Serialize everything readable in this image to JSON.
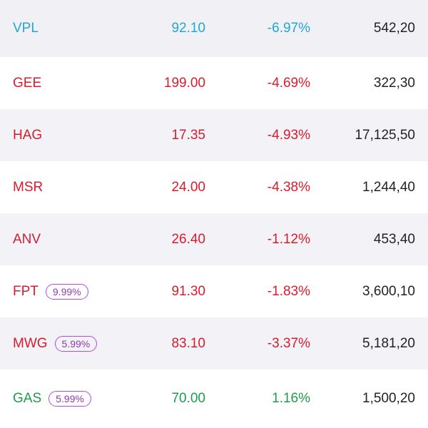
{
  "colors": {
    "ceiling_blue": "#1fa7d6",
    "down_red": "#d81c2f",
    "up_green": "#1e9b4c",
    "badge_purple": "#b04ee0",
    "volume_text": "#222222"
  },
  "rows": [
    {
      "symbol": "VPL",
      "badge": "",
      "price": "92.10",
      "change": "-6.97%",
      "volume": "542,20",
      "color": "blue"
    },
    {
      "symbol": "GEE",
      "badge": "",
      "price": "199.00",
      "change": "-4.69%",
      "volume": "322,30",
      "color": "red"
    },
    {
      "symbol": "HAG",
      "badge": "",
      "price": "17.35",
      "change": "-4.93%",
      "volume": "17,125,50",
      "color": "red"
    },
    {
      "symbol": "MSR",
      "badge": "",
      "price": "24.00",
      "change": "-4.38%",
      "volume": "1,244,40",
      "color": "red"
    },
    {
      "symbol": "ANV",
      "badge": "",
      "price": "26.40",
      "change": "-1.12%",
      "volume": "453,40",
      "color": "red"
    },
    {
      "symbol": "FPT",
      "badge": "9.99%",
      "price": "91.30",
      "change": "-1.83%",
      "volume": "3,600,10",
      "color": "red"
    },
    {
      "symbol": "MWG",
      "badge": "5.99%",
      "price": "83.10",
      "change": "-3.37%",
      "volume": "5,181,20",
      "color": "red"
    },
    {
      "symbol": "GAS",
      "badge": "5.99%",
      "price": "70.00",
      "change": "1.16%",
      "volume": "1,500,20",
      "color": "green"
    }
  ]
}
